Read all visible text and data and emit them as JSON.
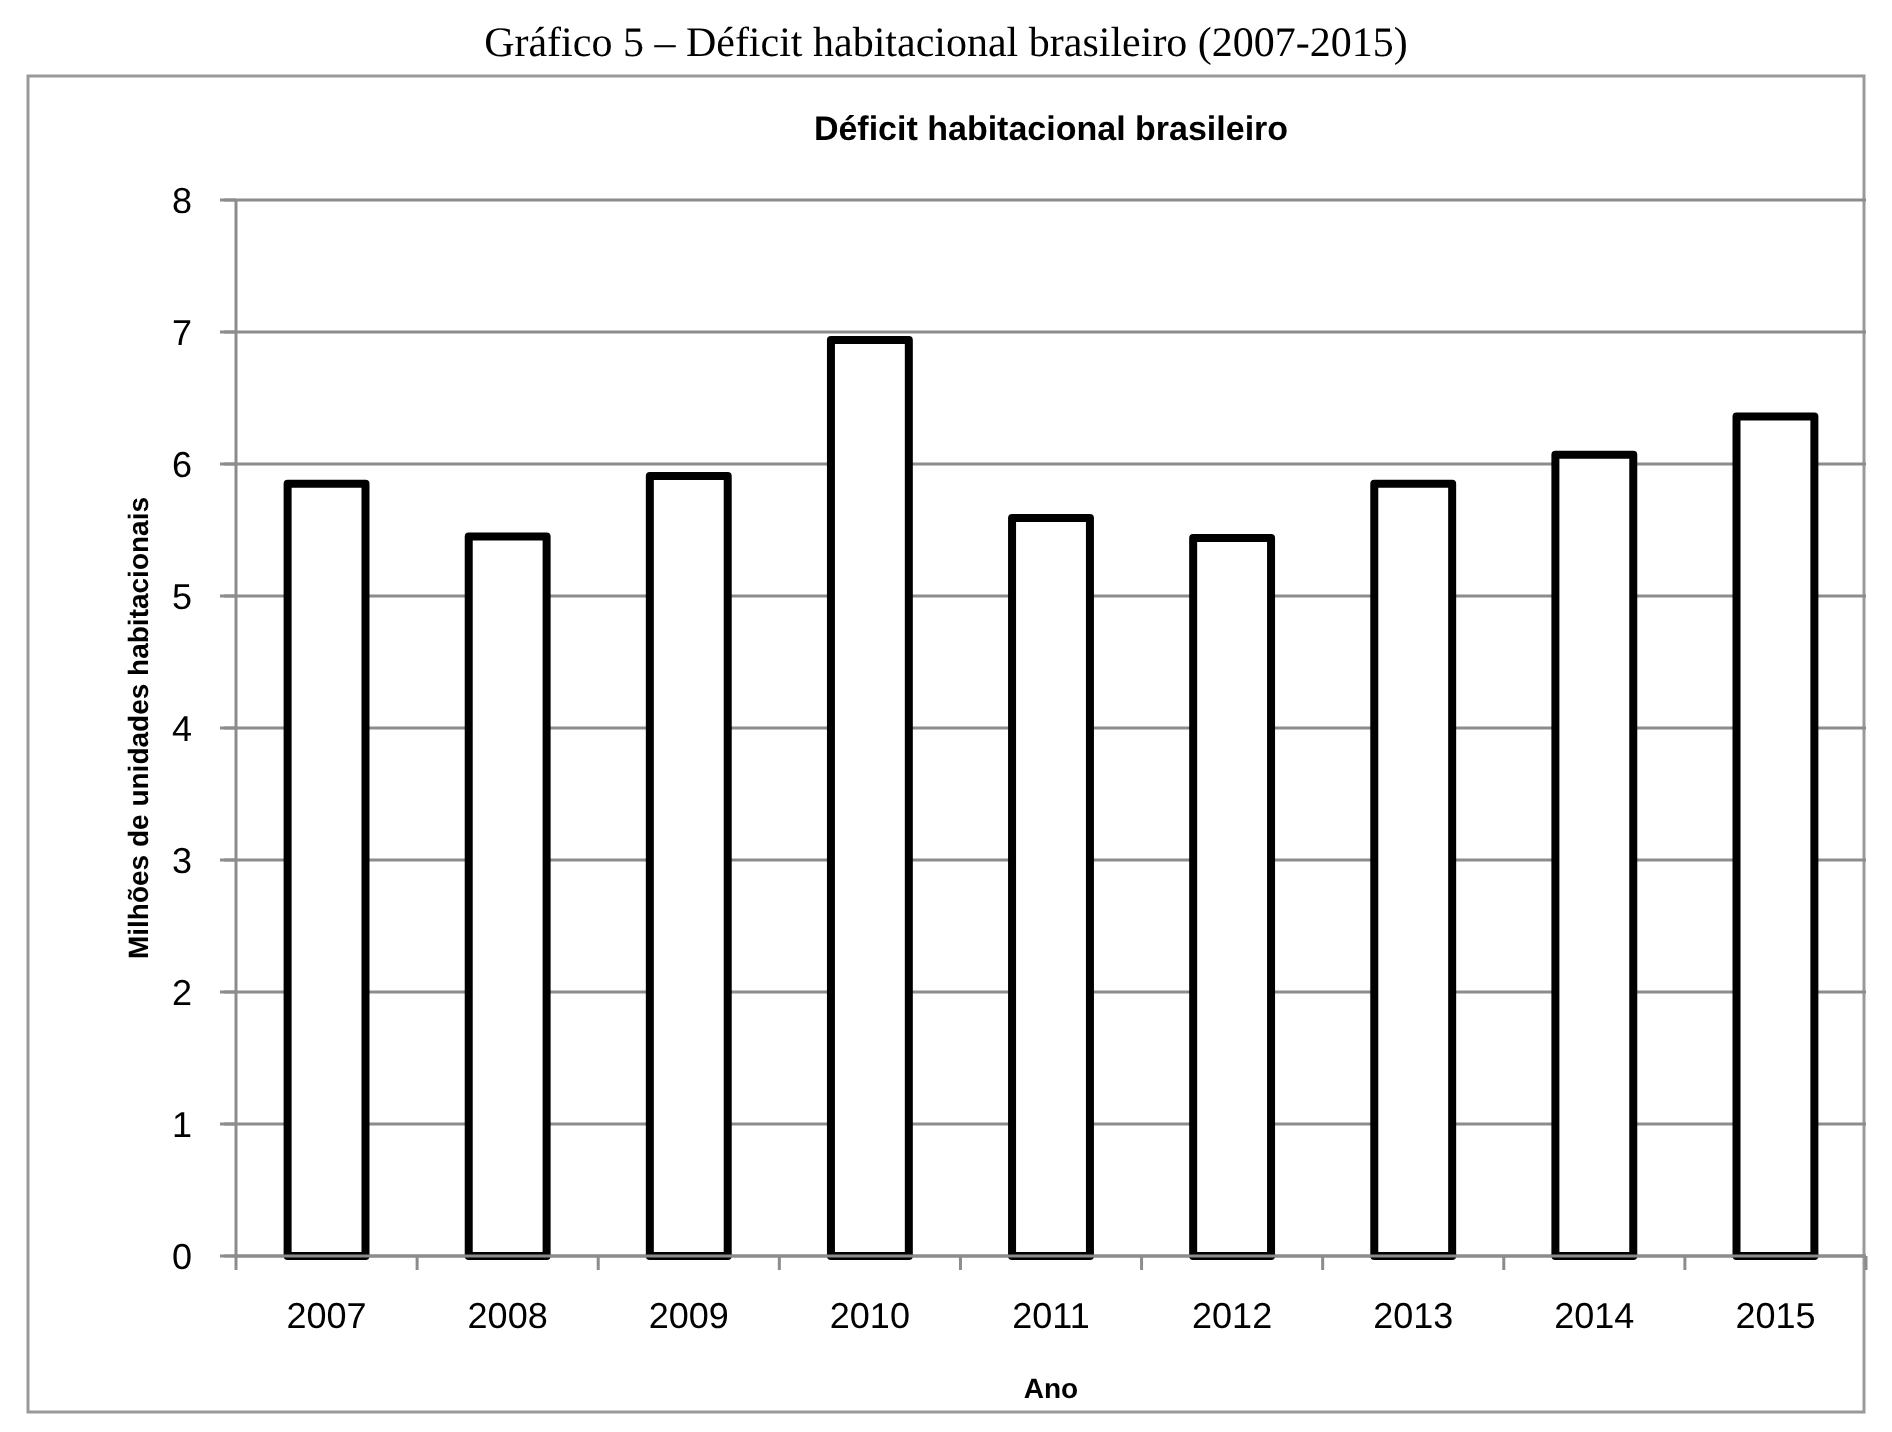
{
  "chart_data": {
    "type": "bar",
    "title": "Déficit habitacional brasileiro",
    "annotations": [
      "Gráfico 5 – Déficit habitacional brasileiro (2007-2015)"
    ],
    "xlabel": "Ano",
    "ylabel": "Milhões de unidades habitacionais",
    "categories": [
      "2007",
      "2008",
      "2009",
      "2010",
      "2011",
      "2012",
      "2013",
      "2014",
      "2015"
    ],
    "values": [
      5.85,
      5.45,
      5.91,
      6.94,
      5.59,
      5.44,
      5.85,
      6.07,
      6.36
    ],
    "color": "#ffffff",
    "ylim": [
      0,
      8
    ],
    "yticks": [
      0,
      1,
      2,
      3,
      4,
      5,
      6,
      7,
      8
    ],
    "grid": "y"
  }
}
